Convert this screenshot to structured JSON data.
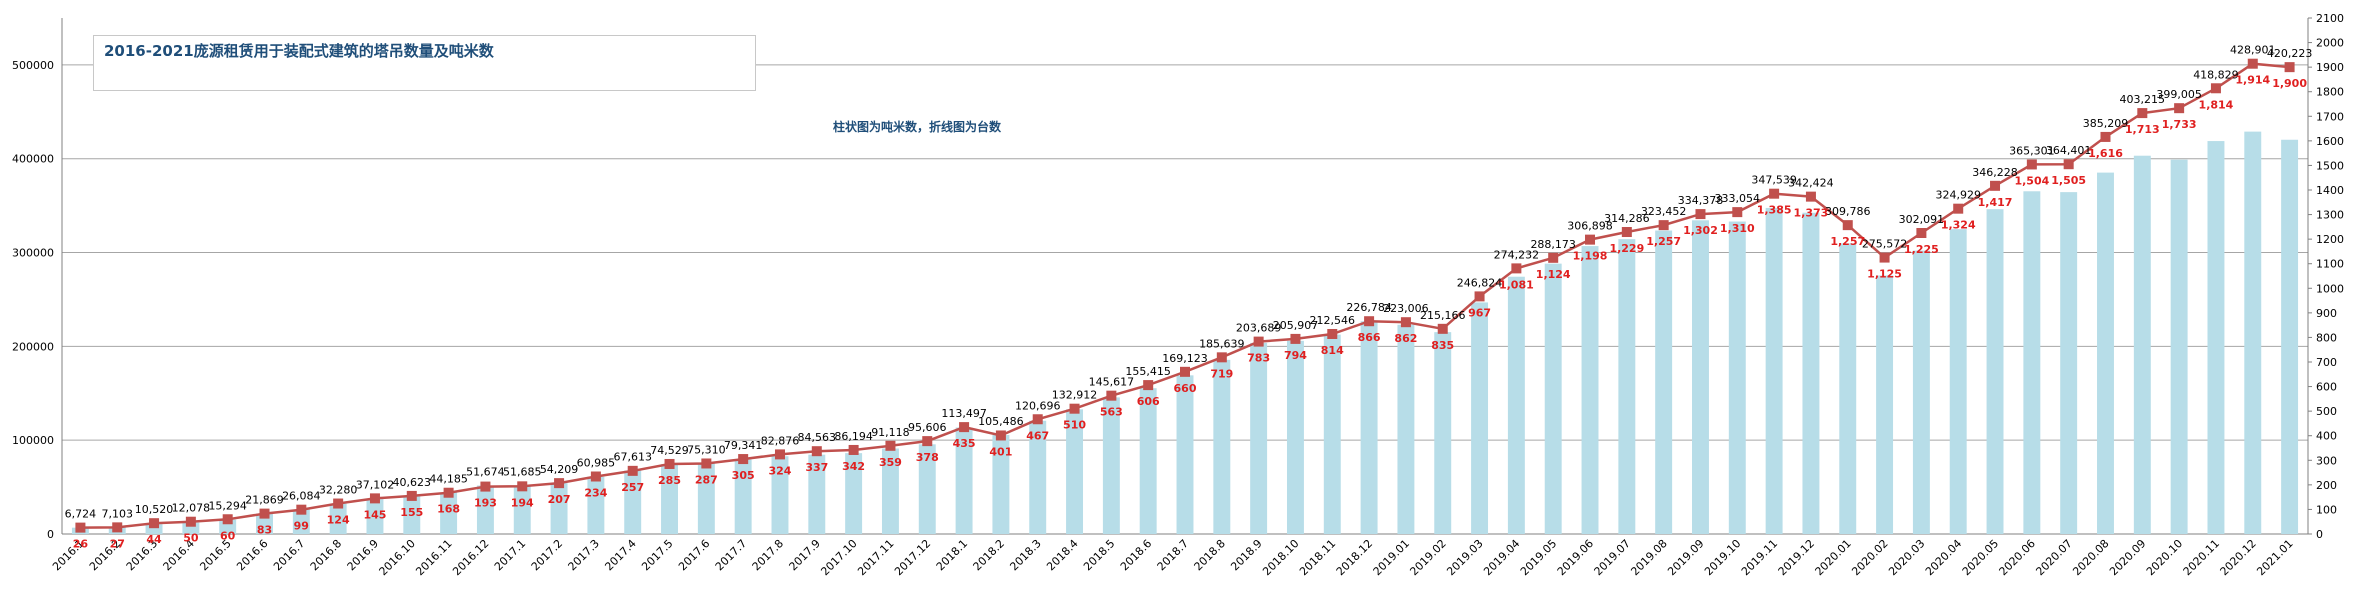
{
  "chart_data": {
    "type": "bar+line",
    "title": "2016-2021庞源租赁用于装配式建筑的塔吊数量及吨米数",
    "note": "柱状图为吨米数，折线图为台数",
    "categories": [
      "2016.1",
      "2016.2",
      "2016.3",
      "2016.4",
      "2016.5",
      "2016.6",
      "2016.7",
      "2016.8",
      "2016.9",
      "2016.10",
      "2016.11",
      "2016.12",
      "2017.1",
      "2017.2",
      "2017.3",
      "2017.4",
      "2017.5",
      "2017.6",
      "2017.7",
      "2017.8",
      "2017.9",
      "2017.10",
      "2017.11",
      "2017.12",
      "2018.1",
      "2018.2",
      "2018.3",
      "2018.4",
      "2018.5",
      "2018.6",
      "2018.7",
      "2018.8",
      "2018.9",
      "2018.10",
      "2018.11",
      "2018.12",
      "2019.01",
      "2019.02",
      "2019.03",
      "2019.04",
      "2019.05",
      "2019.06",
      "2019.07",
      "2019.08",
      "2019.09",
      "2019.10",
      "2019.11",
      "2019.12",
      "2020.01",
      "2020.02",
      "2020.03",
      "2020.04",
      "2020.05",
      "2020.06",
      "2020.07",
      "2020.08",
      "2020.09",
      "2020.10",
      "2020.11",
      "2020.12",
      "2021.01"
    ],
    "series": [
      {
        "kind": "bar",
        "axis": "left",
        "color": "#b7dde8",
        "values": [
          6724,
          7103,
          10520,
          12078,
          15294,
          21869,
          26084,
          32280,
          37102,
          40623,
          44185,
          51674,
          51685,
          54209,
          60985,
          67613,
          74529,
          75310,
          79341,
          82876,
          84563,
          86194,
          91118,
          95606,
          113497,
          105486,
          120696,
          132912,
          145617,
          155415,
          169123,
          185639,
          203689,
          205907,
          212546,
          226784,
          223006,
          215166,
          246824,
          274232,
          288173,
          306898,
          314286,
          323452,
          334378,
          333054,
          347539,
          342424,
          309786,
          275572,
          302091,
          324929,
          346228,
          365301,
          364401,
          385209,
          403215,
          399005,
          418829,
          428901,
          420223
        ],
        "labels": [
          "6,724",
          "7,103",
          "10,520",
          "12,078",
          "15,294",
          "21,869",
          "26,084",
          "32,280",
          "37,102",
          "40,623",
          "44,185",
          "51,674",
          "51,685",
          "54,209",
          "60,985",
          "67,613",
          "74,529",
          "75,310",
          "79,341",
          "82,876",
          "84,563",
          "86,194",
          "91,118",
          "95,606",
          "113,497",
          "105,486",
          "120,696",
          "132,912",
          "145,617",
          "155,415",
          "169,123",
          "185,639",
          "203,689",
          "205,907",
          "212,546",
          "226,784",
          "223,006",
          "215,166",
          "246,824",
          "274,232",
          "288,173",
          "306,898",
          "314,286",
          "323,452",
          "334,378",
          "333,054",
          "347,539",
          "342,424",
          "309,786",
          "275,572",
          "302,091",
          "324,929",
          "346,228",
          "365,301",
          "364,401",
          "385,209",
          "403,215",
          "399,005",
          "418,829",
          "428,901",
          "420,223"
        ]
      },
      {
        "kind": "line",
        "axis": "right",
        "color": "#c0504d",
        "values": [
          26,
          27,
          44,
          50,
          60,
          83,
          99,
          124,
          145,
          155,
          168,
          193,
          194,
          207,
          234,
          257,
          285,
          287,
          305,
          324,
          337,
          342,
          359,
          378,
          435,
          401,
          467,
          510,
          563,
          606,
          660,
          719,
          783,
          794,
          814,
          866,
          862,
          835,
          967,
          1081,
          1124,
          1198,
          1229,
          1257,
          1302,
          1310,
          1385,
          1373,
          1257,
          1125,
          1225,
          1324,
          1417,
          1504,
          1505,
          1616,
          1713,
          1733,
          1814,
          1914,
          1900
        ],
        "labels": [
          "26",
          "27",
          "44",
          "50",
          "60",
          "83",
          "99",
          "124",
          "145",
          "155",
          "168",
          "193",
          "194",
          "207",
          "234",
          "257",
          "285",
          "287",
          "305",
          "324",
          "337",
          "342",
          "359",
          "378",
          "435",
          "401",
          "467",
          "510",
          "563",
          "606",
          "660",
          "719",
          "783",
          "794",
          "814",
          "866",
          "862",
          "835",
          "967",
          "1,081",
          "1,124",
          "1,198",
          "1,229",
          "1,257",
          "1,302",
          "1,310",
          "1,385",
          "1,373",
          "1,257",
          "1,125",
          "1,225",
          "1,324",
          "1,417",
          "1,504",
          "1,505",
          "1,616",
          "1,713",
          "1,733",
          "1,814",
          "1,914",
          "1,900"
        ]
      }
    ],
    "yLeft": {
      "min": 0,
      "max": 550000,
      "ticks": [
        "0",
        "100000",
        "200000",
        "300000",
        "400000",
        "500000"
      ]
    },
    "yRight": {
      "min": 0,
      "max": 2100,
      "ticks": [
        "0",
        "100",
        "200",
        "300",
        "400",
        "500",
        "600",
        "700",
        "800",
        "900",
        "1000",
        "1100",
        "1200",
        "1300",
        "1400",
        "1500",
        "1600",
        "1700",
        "1800",
        "1900",
        "2000",
        "2100"
      ]
    },
    "grid": true,
    "legend": "none"
  }
}
